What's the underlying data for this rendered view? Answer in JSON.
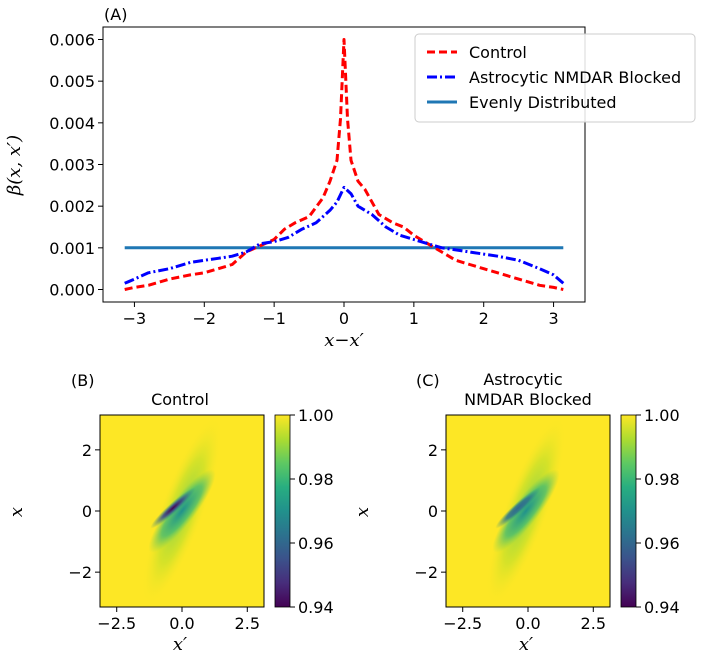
{
  "chart_data": [
    {
      "panel": "(A)",
      "type": "line",
      "title": "",
      "xlabel": "x−x′",
      "ylabel": "β(x, x′)",
      "xlim": [
        -3.45,
        3.45
      ],
      "ylim": [
        -0.0003,
        0.0063
      ],
      "xticks": [
        -3,
        -2,
        -1,
        0,
        1,
        2,
        3
      ],
      "xtick_labels": [
        "−3",
        "−2",
        "−1",
        "0",
        "1",
        "2",
        "3"
      ],
      "yticks": [
        0.0,
        0.001,
        0.002,
        0.003,
        0.004,
        0.005,
        0.006
      ],
      "ytick_labels": [
        "0.000",
        "0.001",
        "0.002",
        "0.003",
        "0.004",
        "0.005",
        "0.006"
      ],
      "legend_position": "top-right",
      "series": [
        {
          "name": "Control",
          "style": "dashed",
          "color": "#ff0000",
          "x": [
            -3.14,
            -3.0,
            -2.8,
            -2.5,
            -2.2,
            -2.0,
            -1.8,
            -1.6,
            -1.4,
            -1.2,
            -1.0,
            -0.85,
            -0.7,
            -0.5,
            -0.3,
            -0.2,
            -0.1,
            -0.05,
            0.0,
            0.05,
            0.1,
            0.2,
            0.3,
            0.5,
            0.7,
            0.85,
            1.0,
            1.2,
            1.4,
            1.6,
            1.8,
            2.0,
            2.2,
            2.5,
            2.8,
            3.0,
            3.14
          ],
          "y": [
            0.0,
            5e-05,
            0.0001,
            0.00025,
            0.00035,
            0.0004,
            0.0005,
            0.0006,
            0.0009,
            0.00105,
            0.0012,
            0.00145,
            0.0016,
            0.00175,
            0.0022,
            0.0026,
            0.0031,
            0.0041,
            0.006,
            0.0041,
            0.0031,
            0.0026,
            0.0024,
            0.0018,
            0.0016,
            0.0015,
            0.0013,
            0.0011,
            0.0009,
            0.0007,
            0.0006,
            0.0005,
            0.0004,
            0.00025,
            0.0001,
            5e-05,
            0.0
          ]
        },
        {
          "name": "Astrocytic NMDAR Blocked",
          "style": "dashdot",
          "color": "#0000ff",
          "x": [
            -3.14,
            -3.0,
            -2.8,
            -2.5,
            -2.2,
            -2.0,
            -1.8,
            -1.6,
            -1.4,
            -1.2,
            -1.0,
            -0.8,
            -0.6,
            -0.4,
            -0.2,
            -0.1,
            0.0,
            0.1,
            0.2,
            0.4,
            0.6,
            0.8,
            1.0,
            1.2,
            1.4,
            1.6,
            1.8,
            2.0,
            2.2,
            2.5,
            2.8,
            3.0,
            3.14
          ],
          "y": [
            0.00015,
            0.00025,
            0.0004,
            0.0005,
            0.00065,
            0.0007,
            0.00075,
            0.0008,
            0.0009,
            0.0011,
            0.00115,
            0.00125,
            0.00145,
            0.0016,
            0.0019,
            0.0021,
            0.00245,
            0.0023,
            0.002,
            0.0018,
            0.0015,
            0.0013,
            0.0012,
            0.0011,
            0.001,
            0.00095,
            0.0009,
            0.00085,
            0.0008,
            0.0007,
            0.0005,
            0.00035,
            0.00015
          ]
        },
        {
          "name": "Evenly Distributed",
          "style": "solid",
          "color": "#1f77b4",
          "x": [
            -3.14,
            3.14
          ],
          "y": [
            0.001,
            0.001
          ]
        }
      ]
    },
    {
      "panel": "(B)",
      "type": "heatmap",
      "title": "Control",
      "xlabel": "x′",
      "ylabel": "x",
      "xlim": [
        -3.14,
        3.14
      ],
      "ylim": [
        -3.14,
        3.14
      ],
      "xticks": [
        -2.5,
        0.0,
        2.5
      ],
      "xtick_labels": [
        "−2.5",
        "0.0",
        "2.5"
      ],
      "yticks": [
        -2,
        0,
        2
      ],
      "ytick_labels": [
        "−2",
        "0",
        "2"
      ],
      "colorbar_range": [
        0.94,
        1.0
      ],
      "colorbar_ticks": [
        0.94,
        0.96,
        0.98,
        1.0
      ],
      "colorbar_tick_labels": [
        "0.94",
        "0.96",
        "0.98",
        "1.00"
      ],
      "colormap": "viridis",
      "pattern": "values near 1.00 everywhere; elongated diagonal low-value ellipse along x = x′ reaching a minimum of about 0.94 at the origin"
    },
    {
      "panel": "(C)",
      "type": "heatmap",
      "title": "Astrocytic NMDAR Blocked",
      "title_lines": [
        "Astrocytic",
        "NMDAR Blocked"
      ],
      "xlabel": "x′",
      "ylabel": "x",
      "xlim": [
        -3.14,
        3.14
      ],
      "ylim": [
        -3.14,
        3.14
      ],
      "xticks": [
        -2.5,
        0.0,
        2.5
      ],
      "xtick_labels": [
        "−2.5",
        "0.0",
        "2.5"
      ],
      "yticks": [
        -2,
        0,
        2
      ],
      "ytick_labels": [
        "−2",
        "0",
        "2"
      ],
      "colorbar_range": [
        0.94,
        1.0
      ],
      "colorbar_ticks": [
        0.94,
        0.96,
        0.98,
        1.0
      ],
      "colorbar_tick_labels": [
        "0.94",
        "0.96",
        "0.98",
        "1.00"
      ],
      "colormap": "viridis",
      "pattern": "values near 1.00 everywhere; slightly weaker diagonal low-value ellipse along x = x′ reaching about 0.95 at the origin"
    }
  ],
  "colors": {
    "viridis_low": "#440154",
    "viridis_mid": "#21908d",
    "viridis_high": "#fde725"
  }
}
